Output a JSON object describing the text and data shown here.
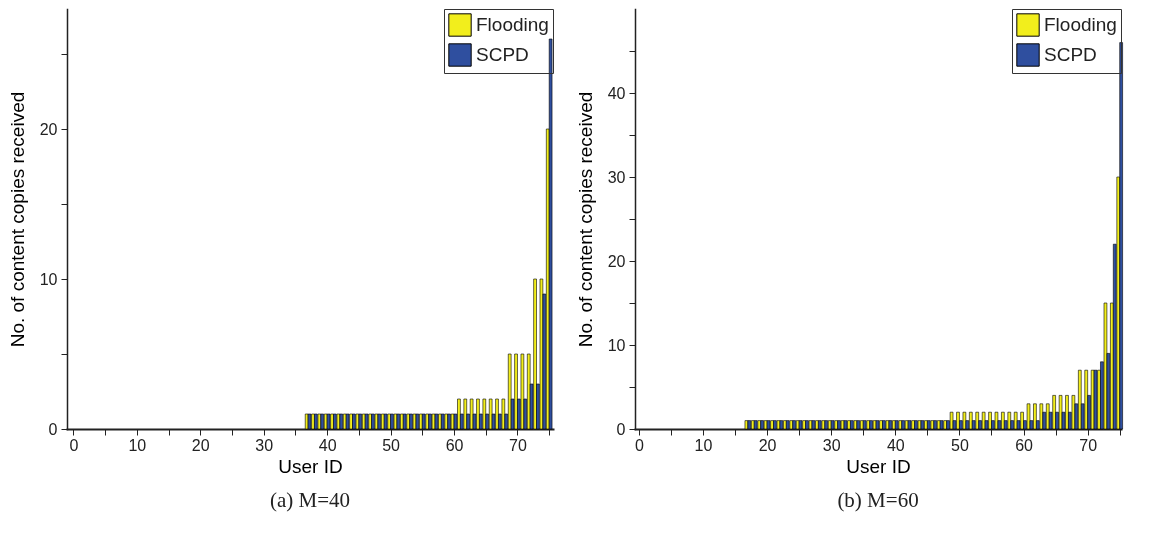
{
  "chart_data": [
    {
      "type": "bar",
      "title": "(a)  M=40",
      "xlabel": "User ID",
      "ylabel": "No. of content copies received",
      "legend": "top right",
      "x": [
        0,
        1,
        2,
        3,
        4,
        5,
        6,
        7,
        8,
        9,
        10,
        11,
        12,
        13,
        14,
        15,
        16,
        17,
        18,
        19,
        20,
        21,
        22,
        23,
        24,
        25,
        26,
        27,
        28,
        29,
        30,
        31,
        32,
        33,
        34,
        35,
        36,
        37,
        38,
        39,
        40,
        41,
        42,
        43,
        44,
        45,
        46,
        47,
        48,
        49,
        50,
        51,
        52,
        53,
        54,
        55,
        56,
        57,
        58,
        59,
        60,
        61,
        62,
        63,
        64,
        65,
        66,
        67,
        68,
        69,
        70,
        71,
        72,
        73,
        74,
        75
      ],
      "series": [
        {
          "name": "Flooding",
          "color": "#f2ee1c",
          "values": [
            0,
            0,
            0,
            0,
            0,
            0,
            0,
            0,
            0,
            0,
            0,
            0,
            0,
            0,
            0,
            0,
            0,
            0,
            0,
            0,
            0,
            0,
            0,
            0,
            0,
            0,
            0,
            0,
            0,
            0,
            0,
            0,
            0,
            0,
            0,
            0,
            0,
            1,
            1,
            1,
            1,
            1,
            1,
            1,
            1,
            1,
            1,
            1,
            1,
            1,
            1,
            1,
            1,
            1,
            1,
            1,
            1,
            1,
            1,
            1,
            1,
            2,
            2,
            2,
            2,
            2,
            2,
            2,
            2,
            5,
            5,
            5,
            5,
            10,
            10,
            20
          ]
        },
        {
          "name": "SCPD",
          "color": "#2f4f9f",
          "values": [
            0,
            0,
            0,
            0,
            0,
            0,
            0,
            0,
            0,
            0,
            0,
            0,
            0,
            0,
            0,
            0,
            0,
            0,
            0,
            0,
            0,
            0,
            0,
            0,
            0,
            0,
            0,
            0,
            0,
            0,
            0,
            0,
            0,
            0,
            0,
            0,
            0,
            1,
            1,
            1,
            1,
            1,
            1,
            1,
            1,
            1,
            1,
            1,
            1,
            1,
            1,
            1,
            1,
            1,
            1,
            1,
            1,
            1,
            1,
            1,
            1,
            1,
            1,
            1,
            1,
            1,
            1,
            1,
            1,
            2,
            2,
            2,
            3,
            3,
            9,
            26
          ]
        }
      ],
      "xlim": [
        -1,
        75.6
      ],
      "xticks": [
        0,
        {
          "value": 5,
          "label": null
        },
        10,
        {
          "value": 15,
          "label": null
        },
        20,
        {
          "value": 25,
          "label": null
        },
        30,
        {
          "value": 35,
          "label": null
        },
        40,
        {
          "value": 45,
          "label": null
        },
        50,
        {
          "value": 55,
          "label": null
        },
        60,
        {
          "value": 65,
          "label": null
        },
        70,
        {
          "value": 75,
          "label": null
        }
      ],
      "ylim": [
        0,
        28
      ],
      "yticks": [
        0,
        {
          "value": 5,
          "label": null
        },
        10,
        {
          "value": 15,
          "label": null
        },
        20,
        {
          "value": 25,
          "label": null
        }
      ]
    },
    {
      "type": "bar",
      "title": "(b)  M=60",
      "xlabel": "User ID",
      "ylabel": "No. of content copies received",
      "legend": "top right",
      "x": [
        0,
        1,
        2,
        3,
        4,
        5,
        6,
        7,
        8,
        9,
        10,
        11,
        12,
        13,
        14,
        15,
        16,
        17,
        18,
        19,
        20,
        21,
        22,
        23,
        24,
        25,
        26,
        27,
        28,
        29,
        30,
        31,
        32,
        33,
        34,
        35,
        36,
        37,
        38,
        39,
        40,
        41,
        42,
        43,
        44,
        45,
        46,
        47,
        48,
        49,
        50,
        51,
        52,
        53,
        54,
        55,
        56,
        57,
        58,
        59,
        60,
        61,
        62,
        63,
        64,
        65,
        66,
        67,
        68,
        69,
        70,
        71,
        72,
        73,
        74,
        75
      ],
      "series": [
        {
          "name": "Flooding",
          "color": "#f2ee1c",
          "values": [
            0,
            0,
            0,
            0,
            0,
            0,
            0,
            0,
            0,
            0,
            0,
            0,
            0,
            0,
            0,
            0,
            0,
            1,
            1,
            1,
            1,
            1,
            1,
            1,
            1,
            1,
            1,
            1,
            1,
            1,
            1,
            1,
            1,
            1,
            1,
            1,
            1,
            1,
            1,
            1,
            1,
            1,
            1,
            1,
            1,
            1,
            1,
            1,
            1,
            2,
            2,
            2,
            2,
            2,
            2,
            2,
            2,
            2,
            2,
            2,
            2,
            3,
            3,
            3,
            3,
            4,
            4,
            4,
            4,
            7,
            7,
            7,
            7,
            15,
            15,
            30
          ]
        },
        {
          "name": "SCPD",
          "color": "#2f4f9f",
          "values": [
            0,
            0,
            0,
            0,
            0,
            0,
            0,
            0,
            0,
            0,
            0,
            0,
            0,
            0,
            0,
            0,
            0,
            1,
            1,
            1,
            1,
            1,
            1,
            1,
            1,
            1,
            1,
            1,
            1,
            1,
            1,
            1,
            1,
            1,
            1,
            1,
            1,
            1,
            1,
            1,
            1,
            1,
            1,
            1,
            1,
            1,
            1,
            1,
            1,
            1,
            1,
            1,
            1,
            1,
            1,
            1,
            1,
            1,
            1,
            1,
            1,
            1,
            1,
            2,
            2,
            2,
            2,
            2,
            3,
            3,
            4,
            7,
            8,
            9,
            22,
            46
          ]
        }
      ],
      "xlim": [
        -0.6,
        75.2
      ],
      "xticks": [
        0,
        {
          "value": 5,
          "label": null
        },
        10,
        {
          "value": 15,
          "label": null
        },
        20,
        {
          "value": 25,
          "label": null
        },
        30,
        {
          "value": 35,
          "label": null
        },
        40,
        {
          "value": 45,
          "label": null
        },
        50,
        {
          "value": 55,
          "label": null
        },
        60,
        {
          "value": 65,
          "label": null
        },
        70,
        {
          "value": 75,
          "label": null
        }
      ],
      "ylim": [
        0,
        50
      ],
      "yticks": [
        0,
        {
          "value": 5,
          "label": null
        },
        10,
        {
          "value": 15,
          "label": null
        },
        20,
        {
          "value": 25,
          "label": null
        },
        30,
        {
          "value": 35,
          "label": null
        },
        40,
        {
          "value": 45,
          "label": null
        }
      ]
    }
  ]
}
